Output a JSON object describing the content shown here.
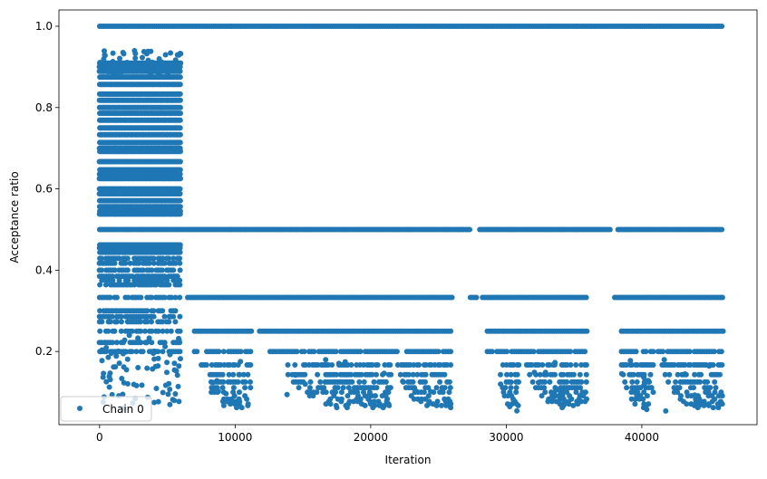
{
  "chart_data": {
    "type": "scatter",
    "title": "",
    "xlabel": "Iteration",
    "ylabel": "Acceptance ratio",
    "xlim": [
      -3000,
      48500
    ],
    "ylim": [
      0.02,
      1.04
    ],
    "xticks": [
      0,
      10000,
      20000,
      30000,
      40000
    ],
    "xtick_labels": [
      "0",
      "10000",
      "20000",
      "30000",
      "40000"
    ],
    "yticks": [
      0.2,
      0.4,
      0.6,
      0.8,
      1.0
    ],
    "ytick_labels": [
      "0.2",
      "0.4",
      "0.6",
      "0.8",
      "1.0"
    ],
    "grid": false,
    "legend_position": "lower-left",
    "series": [
      {
        "name": "Chain 0",
        "color": "#1f77b4",
        "marker": "circle",
        "approx_points_by_level": {
          "1.0": {
            "x_range": [
              0,
              46000
            ],
            "continuous": true
          },
          "0.5": {
            "x_range": [
              0,
              46000
            ],
            "continuous": true,
            "gaps": [
              [
                27400,
                28000
              ],
              [
                37700,
                38200
              ]
            ]
          },
          "0.333": {
            "x_ranges": [
              [
                6500,
                26000
              ],
              [
                27300,
                27800
              ],
              [
                28200,
                36000
              ],
              [
                38000,
                46000
              ]
            ]
          },
          "0.25": {
            "x_ranges": [
              [
                7000,
                11200
              ],
              [
                11800,
                26000
              ],
              [
                28500,
                36000
              ],
              [
                38500,
                46000
              ]
            ]
          },
          "0.2": {
            "x_ranges": [
              [
                7000,
                11200
              ],
              [
                12500,
                22000
              ],
              [
                22500,
                26000
              ],
              [
                28500,
                36000
              ],
              [
                38500,
                46000
              ]
            ]
          },
          "early_dense_region": {
            "x_range": [
              0,
              6000
            ],
            "y_range": [
              0.06,
              0.94
            ]
          }
        },
        "points": []
      }
    ]
  }
}
